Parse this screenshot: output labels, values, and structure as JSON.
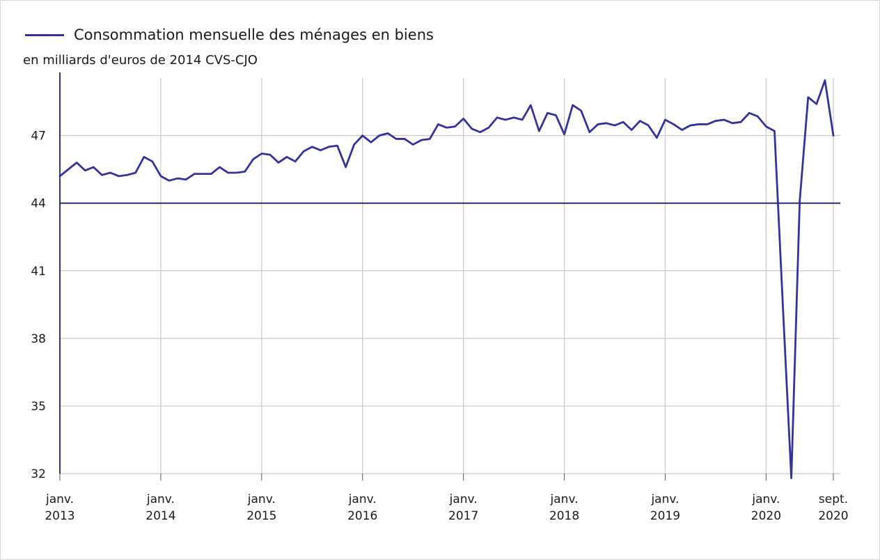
{
  "chart_data": {
    "type": "line",
    "title": "",
    "ylabel": "en milliards d'euros de 2014 CVS-CJO",
    "xlabel": "",
    "ylim": [
      32,
      49.8
    ],
    "yticks": [
      32,
      35,
      38,
      41,
      44,
      47
    ],
    "reference_line": 44,
    "grid": true,
    "legend": "top-left",
    "x_start": "2013-01",
    "x_end": "2020-09",
    "xticks": [
      {
        "date": "2013-01",
        "line1": "janv.",
        "line2": "2013"
      },
      {
        "date": "2014-01",
        "line1": "janv.",
        "line2": "2014"
      },
      {
        "date": "2015-01",
        "line1": "janv.",
        "line2": "2015"
      },
      {
        "date": "2016-01",
        "line1": "janv.",
        "line2": "2016"
      },
      {
        "date": "2017-01",
        "line1": "janv.",
        "line2": "2017"
      },
      {
        "date": "2018-01",
        "line1": "janv.",
        "line2": "2018"
      },
      {
        "date": "2019-01",
        "line1": "janv.",
        "line2": "2019"
      },
      {
        "date": "2020-01",
        "line1": "janv.",
        "line2": "2020"
      },
      {
        "date": "2020-09",
        "line1": "sept.",
        "line2": "2020"
      }
    ],
    "series": [
      {
        "name": "Consommation mensuelle des ménages en biens",
        "color": "#333399",
        "values": [
          45.2,
          45.5,
          45.8,
          45.45,
          45.6,
          45.25,
          45.35,
          45.2,
          45.25,
          45.35,
          46.05,
          45.85,
          45.2,
          45.0,
          45.1,
          45.05,
          45.3,
          45.3,
          45.3,
          45.6,
          45.35,
          45.35,
          45.4,
          45.95,
          46.2,
          46.15,
          45.8,
          46.05,
          45.85,
          46.3,
          46.5,
          46.35,
          46.5,
          46.55,
          45.6,
          46.6,
          47.0,
          46.7,
          47.0,
          47.1,
          46.85,
          46.85,
          46.6,
          46.8,
          46.85,
          47.5,
          47.35,
          47.4,
          47.75,
          47.3,
          47.15,
          47.35,
          47.8,
          47.7,
          47.8,
          47.7,
          48.35,
          47.2,
          48.0,
          47.9,
          47.05,
          48.35,
          48.1,
          47.15,
          47.5,
          47.55,
          47.45,
          47.6,
          47.25,
          47.65,
          47.45,
          46.9,
          47.7,
          47.5,
          47.25,
          47.45,
          47.5,
          47.5,
          47.65,
          47.7,
          47.55,
          47.6,
          48.0,
          47.85,
          47.4,
          47.2,
          39.4,
          31.8,
          44.1,
          48.7,
          48.4,
          49.45,
          47.0
        ]
      }
    ]
  }
}
